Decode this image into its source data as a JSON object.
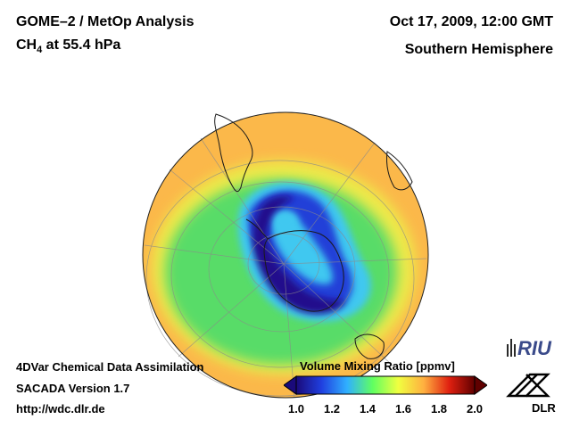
{
  "header": {
    "title_line1": "GOME–2 / MetOp Analysis",
    "species": "CH",
    "species_subscript": "4",
    "species_level": " at 55.4 hPa",
    "date": "Oct 17, 2009, 12:00 GMT",
    "region": "Southern Hemisphere"
  },
  "footer": {
    "line1": "4DVar Chemical Data Assimilation",
    "line2": "SACADA Version 1.7",
    "line3": "http://wdc.dlr.de"
  },
  "colorbar": {
    "title": "Volume Mixing Ratio [ppmv]",
    "ticks": [
      "1.0",
      "1.2",
      "1.4",
      "1.6",
      "1.8",
      "2.0"
    ],
    "min": 1.0,
    "max": 2.0,
    "colors": [
      "#1a0a7a",
      "#2040e0",
      "#30b0ff",
      "#60ff60",
      "#f0ff40",
      "#ffb040",
      "#e02010",
      "#600000"
    ]
  },
  "map": {
    "palette": {
      "outer": "#fbb84a",
      "yellow_band": "#eeea4a",
      "green": "#58dc68",
      "cyan": "#40c8f0",
      "blue": "#2040d8",
      "dark_blue": "#20108c"
    }
  },
  "logos": {
    "riu": "RIU",
    "dlr": "DLR"
  }
}
